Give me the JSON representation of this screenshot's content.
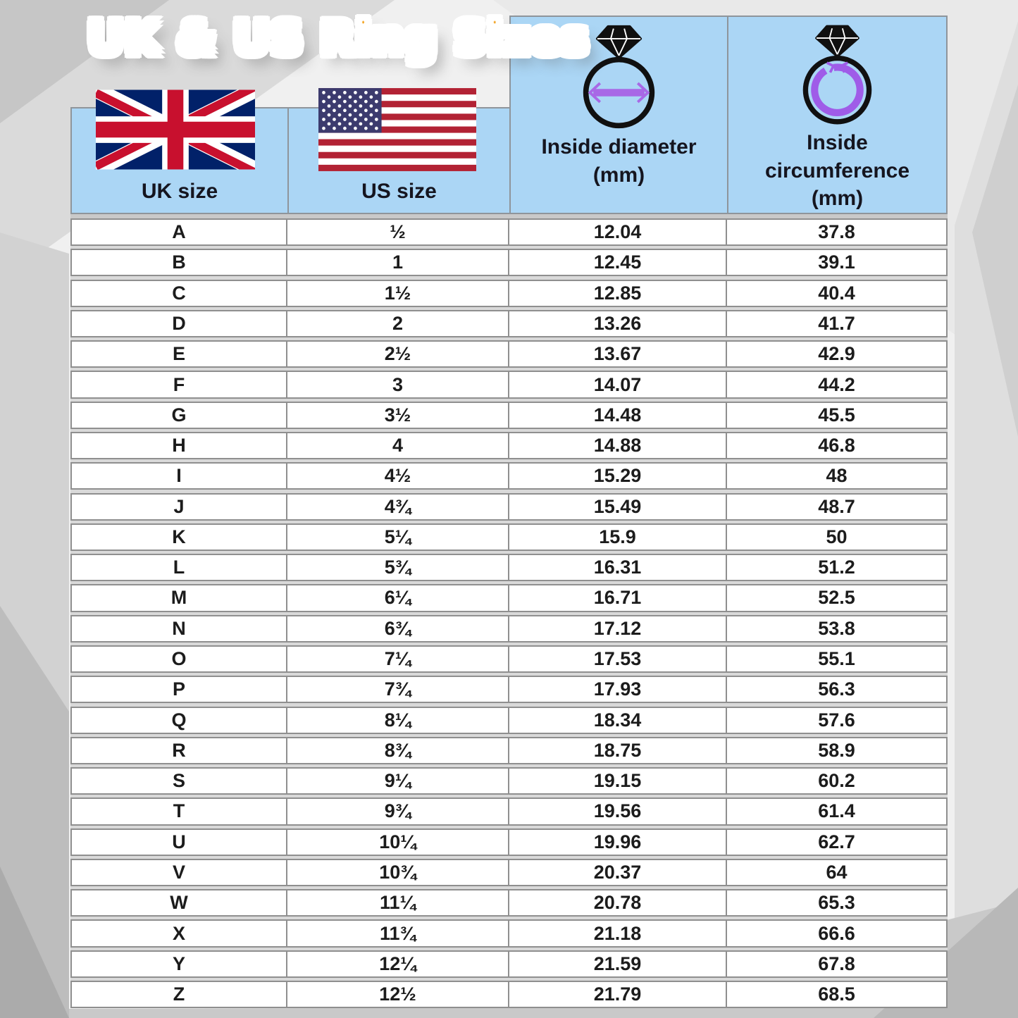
{
  "title": "UK & US Ring Sizes",
  "header": {
    "uk": {
      "label": "UK size",
      "icon": "uk-flag"
    },
    "us": {
      "label": "US size",
      "icon": "us-flag"
    },
    "diameter": {
      "label": "Inside diameter\n(mm)",
      "icon": "ring-inside-diameter"
    },
    "circumference": {
      "label": "Inside\ncircumference\n(mm)",
      "icon": "ring-inside-circumference"
    }
  },
  "colors": {
    "header_blue": "#abd6f5",
    "title_orange": "#ee8900",
    "arrow_purple": "#a868e6",
    "cell_border": "#8f8f8f",
    "uk_flag_blue": "#012169",
    "uk_flag_red": "#C8102E",
    "us_flag_red": "#B22234",
    "us_flag_blue": "#3C3B6E"
  },
  "chart_data": {
    "type": "table",
    "title": "UK & US Ring Sizes",
    "columns": [
      "UK size",
      "US size",
      "Inside diameter (mm)",
      "Inside circumference (mm)"
    ],
    "rows": [
      [
        "A",
        "½",
        "12.04",
        "37.8"
      ],
      [
        "B",
        "1",
        "12.45",
        "39.1"
      ],
      [
        "C",
        "1½",
        "12.85",
        "40.4"
      ],
      [
        "D",
        "2",
        "13.26",
        "41.7"
      ],
      [
        "E",
        "2½",
        "13.67",
        "42.9"
      ],
      [
        "F",
        "3",
        "14.07",
        "44.2"
      ],
      [
        "G",
        "3½",
        "14.48",
        "45.5"
      ],
      [
        "H",
        "4",
        "14.88",
        "46.8"
      ],
      [
        "I",
        "4½",
        "15.29",
        "48"
      ],
      [
        "J",
        "4¾",
        "15.49",
        "48.7"
      ],
      [
        "K",
        "5¼",
        "15.9",
        "50"
      ],
      [
        "L",
        "5¾",
        "16.31",
        "51.2"
      ],
      [
        "M",
        "6¼",
        "16.71",
        "52.5"
      ],
      [
        "N",
        "6¾",
        "17.12",
        "53.8"
      ],
      [
        "O",
        "7¼",
        "17.53",
        "55.1"
      ],
      [
        "P",
        "7¾",
        "17.93",
        "56.3"
      ],
      [
        "Q",
        "8¼",
        "18.34",
        "57.6"
      ],
      [
        "R",
        "8¾",
        "18.75",
        "58.9"
      ],
      [
        "S",
        "9¼",
        "19.15",
        "60.2"
      ],
      [
        "T",
        "9¾",
        "19.56",
        "61.4"
      ],
      [
        "U",
        "10¼",
        "19.96",
        "62.7"
      ],
      [
        "V",
        "10¾",
        "20.37",
        "64"
      ],
      [
        "W",
        "11¼",
        "20.78",
        "65.3"
      ],
      [
        "X",
        "11¾",
        "21.18",
        "66.6"
      ],
      [
        "Y",
        "12¼",
        "21.59",
        "67.8"
      ],
      [
        "Z",
        "12½",
        "21.79",
        "68.5"
      ]
    ]
  }
}
